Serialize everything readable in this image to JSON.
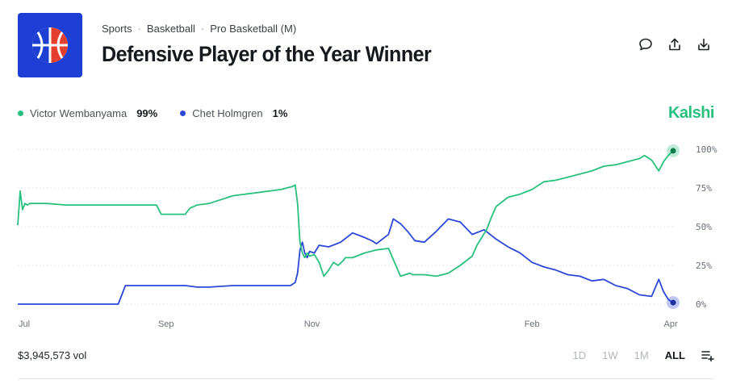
{
  "breadcrumbs": [
    "Sports",
    "Basketball",
    "Pro Basketball (M)"
  ],
  "title": "Defensive Player of the Year Winner",
  "brand": "Kalshi",
  "legend": [
    {
      "name": "Victor Wembanyama",
      "pct": "99%",
      "color": "#28c07f"
    },
    {
      "name": "Chet Holmgren",
      "pct": "1%",
      "color": "#2b47d9"
    }
  ],
  "volume": "$3,945,573 vol",
  "ranges": [
    "1D",
    "1W",
    "1M",
    "ALL"
  ],
  "active_range": "ALL",
  "icons": [
    "basketball-icon",
    "comment-icon",
    "share-icon",
    "download-icon",
    "menu-add-icon"
  ],
  "chart_data": {
    "type": "line",
    "title": "Defensive Player of the Year Winner",
    "x_unit": "days since Jul 1",
    "xlim": [
      0,
      275
    ],
    "ylim": [
      0,
      100
    ],
    "ytick_labels": [
      "100%",
      "75%",
      "50%",
      "25%",
      "0%"
    ],
    "yticks": [
      100,
      75,
      50,
      25,
      0
    ],
    "xtick_labels": [
      "Jul",
      "Sep",
      "Nov",
      "Feb",
      "Apr"
    ],
    "xticks": [
      0,
      62,
      123,
      215,
      273
    ],
    "grid": true,
    "series": [
      {
        "name": "Victor Wembanyama",
        "color": "#28c07f",
        "x": [
          0,
          1,
          2,
          3,
          4,
          5,
          12,
          20,
          30,
          40,
          50,
          58,
          60,
          70,
          72,
          75,
          80,
          90,
          100,
          110,
          115,
          116,
          117,
          118,
          119,
          120,
          121,
          122,
          124,
          126,
          128,
          130,
          132,
          134,
          136,
          137,
          140,
          145,
          150,
          155,
          160,
          164,
          165,
          170,
          175,
          180,
          185,
          190,
          192,
          194,
          196,
          198,
          200,
          205,
          210,
          215,
          220,
          225,
          230,
          235,
          240,
          245,
          250,
          255,
          260,
          262,
          265,
          268,
          270,
          272,
          274
        ],
        "y": [
          51,
          73,
          61,
          65,
          64,
          65,
          65,
          64,
          64,
          64,
          64,
          64,
          58,
          58,
          62,
          64,
          65,
          70,
          72,
          74,
          76,
          77,
          65,
          40,
          33,
          30,
          33,
          31,
          32,
          27,
          18,
          22,
          27,
          25,
          28,
          30,
          30,
          33,
          35,
          36,
          18,
          20,
          19,
          19,
          18,
          20,
          25,
          31,
          38,
          43,
          48,
          56,
          63,
          69,
          71,
          74,
          79,
          80,
          82,
          84,
          86,
          89,
          90,
          92,
          94,
          96,
          93,
          86,
          92,
          96,
          99
        ]
      },
      {
        "name": "Chet Holmgren",
        "color": "#2b47d9",
        "x": [
          0,
          10,
          20,
          30,
          40,
          42,
          45,
          50,
          60,
          70,
          75,
          80,
          90,
          100,
          110,
          114,
          116,
          117,
          118,
          119,
          120,
          121,
          122,
          124,
          126,
          130,
          135,
          140,
          145,
          148,
          150,
          155,
          157,
          160,
          163,
          166,
          170,
          175,
          180,
          185,
          190,
          195,
          200,
          205,
          210,
          215,
          220,
          225,
          230,
          235,
          240,
          245,
          250,
          255,
          260,
          265,
          268,
          270,
          272,
          274
        ],
        "y": [
          0,
          0,
          0,
          0,
          0,
          0,
          12,
          12,
          12,
          12,
          11,
          11,
          12,
          12,
          12,
          12,
          14,
          20,
          35,
          40,
          33,
          30,
          34,
          33,
          38,
          37,
          40,
          46,
          43,
          41,
          39,
          45,
          55,
          52,
          47,
          41,
          40,
          47,
          55,
          53,
          45,
          48,
          42,
          37,
          33,
          27,
          24,
          22,
          19,
          18,
          15,
          16,
          12,
          10,
          6,
          5,
          16,
          8,
          3,
          1
        ]
      }
    ]
  }
}
